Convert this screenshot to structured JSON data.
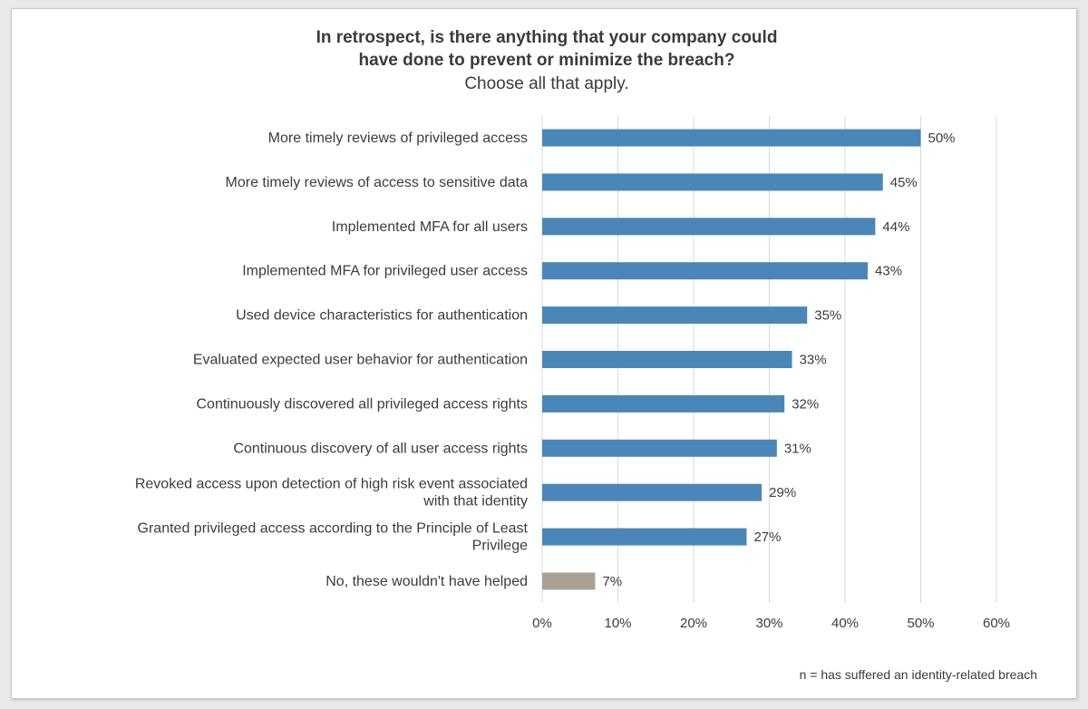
{
  "chart_data": {
    "type": "bar",
    "orientation": "horizontal",
    "title": "In retrospect, is there anything that your company could have done to prevent or minimize the breach?",
    "title_lines": [
      "In retrospect, is there anything that your company could",
      "have done to prevent or minimize the breach?"
    ],
    "subtitle": "Choose all that apply.",
    "categories": [
      "More timely reviews of privileged access",
      "More timely reviews of access to sensitive data",
      "Implemented MFA for all users",
      "Implemented MFA for privileged user access",
      "Used device characteristics for authentication",
      "Evaluated expected user behavior for authentication",
      "Continuously discovered all privileged access rights",
      "Continuous discovery of all user access rights",
      "Revoked access upon detection of high risk event associated with that identity",
      "Granted privileged access according to the Principle of Least Privilege",
      "No, these wouldn't have helped"
    ],
    "category_lines": [
      [
        "More timely reviews of privileged access"
      ],
      [
        "More timely reviews of access to sensitive data"
      ],
      [
        "Implemented MFA for all users"
      ],
      [
        "Implemented MFA for privileged user access"
      ],
      [
        "Used device characteristics for authentication"
      ],
      [
        "Evaluated expected user behavior for authentication"
      ],
      [
        "Continuously discovered all privileged access rights"
      ],
      [
        "Continuous discovery of all user access rights"
      ],
      [
        "Revoked access upon detection of high risk event associated",
        "with that identity"
      ],
      [
        "Granted privileged access according to the Principle of Least",
        "Privilege"
      ],
      [
        "No, these wouldn't have helped"
      ]
    ],
    "values": [
      50,
      45,
      44,
      43,
      35,
      33,
      32,
      31,
      29,
      27,
      7
    ],
    "value_labels": [
      "50%",
      "45%",
      "44%",
      "43%",
      "35%",
      "33%",
      "32%",
      "31%",
      "29%",
      "27%",
      "7%"
    ],
    "bar_colors": [
      "#4a86b8",
      "#4a86b8",
      "#4a86b8",
      "#4a86b8",
      "#4a86b8",
      "#4a86b8",
      "#4a86b8",
      "#4a86b8",
      "#4a86b8",
      "#4a86b8",
      "#a9a294"
    ],
    "xlim": [
      0,
      60
    ],
    "x_ticks": [
      0,
      10,
      20,
      30,
      40,
      50,
      60
    ],
    "x_tick_labels": [
      "0%",
      "10%",
      "20%",
      "30%",
      "40%",
      "50%",
      "60%"
    ],
    "grid": true,
    "gridline_color": "#d9d9d9"
  },
  "footnote": "n = has suffered an identity-related breach"
}
